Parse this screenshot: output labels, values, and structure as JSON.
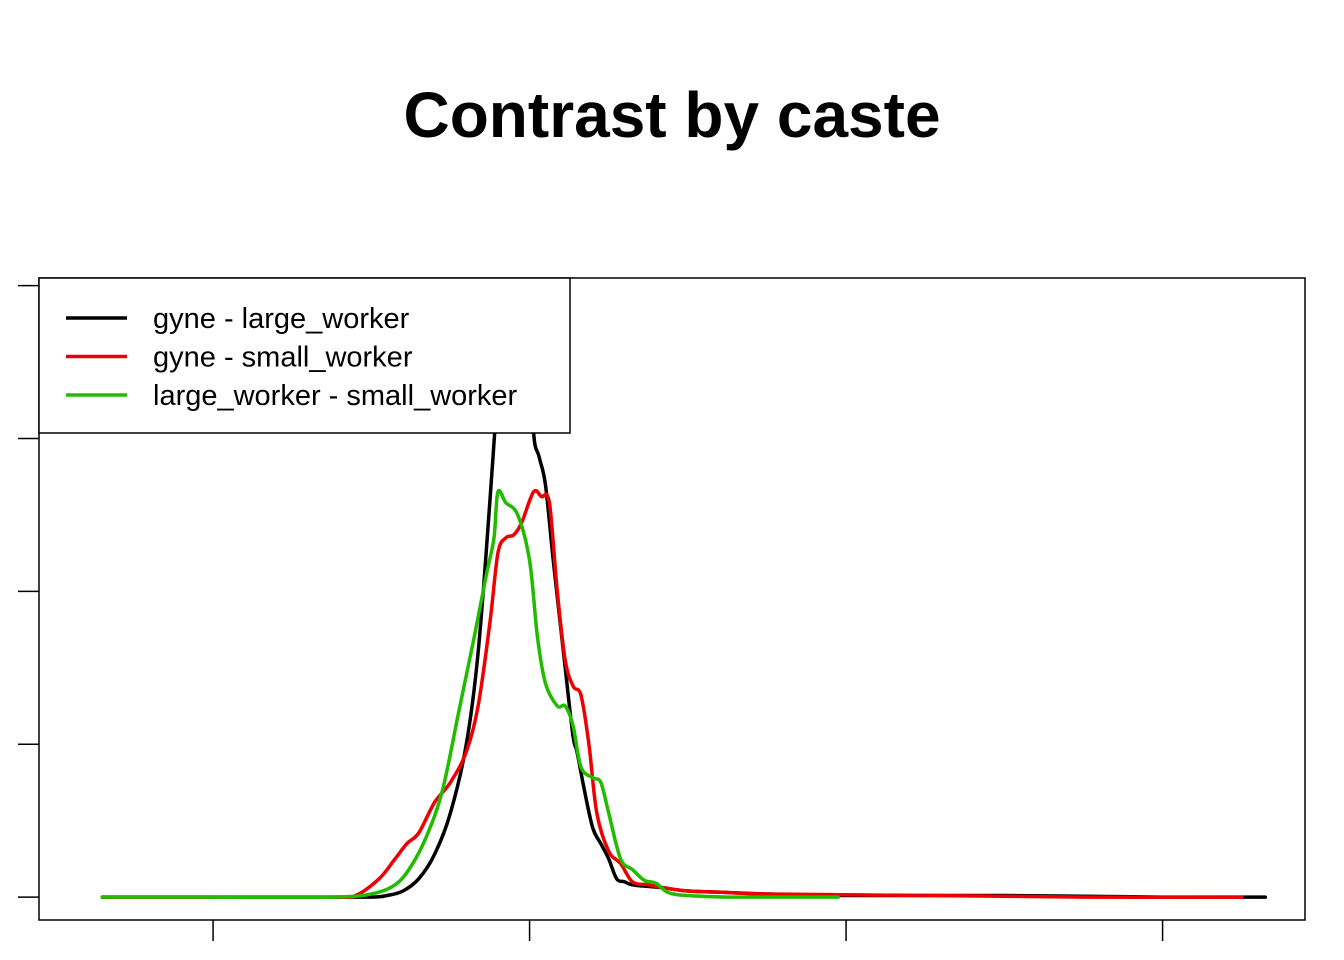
{
  "chart_data": {
    "type": "line",
    "title": "Contrast by caste",
    "xlabel": "",
    "ylabel": "",
    "xlim": [
      -0.62,
      0.98
    ],
    "ylim": [
      -0.015,
      0.405
    ],
    "x_ticks": [
      -0.4,
      0.0,
      0.4,
      0.8
    ],
    "y_ticks": [
      0.0,
      0.1,
      0.2,
      0.3,
      0.4
    ],
    "x_tick_labels_shown": false,
    "y_tick_labels_shown": false,
    "legend_position": "top-left",
    "grid": false,
    "series": [
      {
        "name": "gyne - large_worker",
        "color": "#000000",
        "points": [
          [
            -0.54,
            0.0
          ],
          [
            -0.4,
            0.0
          ],
          [
            -0.25,
            0.0
          ],
          [
            -0.2,
            0.0
          ],
          [
            -0.18,
            0.001
          ],
          [
            -0.16,
            0.004
          ],
          [
            -0.14,
            0.012
          ],
          [
            -0.12,
            0.028
          ],
          [
            -0.1,
            0.055
          ],
          [
            -0.08,
            0.1
          ],
          [
            -0.065,
            0.16
          ],
          [
            -0.05,
            0.26
          ],
          [
            -0.038,
            0.35
          ],
          [
            -0.033,
            0.37
          ],
          [
            -0.01,
            0.39
          ],
          [
            0.0,
            0.38
          ],
          [
            0.005,
            0.305
          ],
          [
            0.012,
            0.288
          ],
          [
            0.02,
            0.27
          ],
          [
            0.03,
            0.22
          ],
          [
            0.045,
            0.15
          ],
          [
            0.055,
            0.105
          ],
          [
            0.06,
            0.095
          ],
          [
            0.07,
            0.068
          ],
          [
            0.08,
            0.045
          ],
          [
            0.09,
            0.035
          ],
          [
            0.1,
            0.025
          ],
          [
            0.11,
            0.012
          ],
          [
            0.12,
            0.01
          ],
          [
            0.13,
            0.008
          ],
          [
            0.15,
            0.007
          ],
          [
            0.17,
            0.006
          ],
          [
            0.2,
            0.004
          ],
          [
            0.25,
            0.003
          ],
          [
            0.3,
            0.002
          ],
          [
            0.4,
            0.001
          ],
          [
            0.6,
            0.001
          ],
          [
            0.8,
            0.0
          ],
          [
            0.93,
            0.0
          ]
        ]
      },
      {
        "name": "gyne - small_worker",
        "color": "#ee0000",
        "points": [
          [
            -0.54,
            0.0
          ],
          [
            -0.4,
            0.0
          ],
          [
            -0.25,
            0.0
          ],
          [
            -0.22,
            0.001
          ],
          [
            -0.19,
            0.012
          ],
          [
            -0.17,
            0.025
          ],
          [
            -0.155,
            0.035
          ],
          [
            -0.14,
            0.042
          ],
          [
            -0.12,
            0.062
          ],
          [
            -0.1,
            0.075
          ],
          [
            -0.08,
            0.095
          ],
          [
            -0.065,
            0.125
          ],
          [
            -0.05,
            0.18
          ],
          [
            -0.04,
            0.225
          ],
          [
            -0.03,
            0.235
          ],
          [
            -0.02,
            0.237
          ],
          [
            -0.01,
            0.245
          ],
          [
            0.005,
            0.265
          ],
          [
            0.015,
            0.262
          ],
          [
            0.025,
            0.258
          ],
          [
            0.035,
            0.2
          ],
          [
            0.045,
            0.155
          ],
          [
            0.055,
            0.138
          ],
          [
            0.065,
            0.132
          ],
          [
            0.075,
            0.1
          ],
          [
            0.085,
            0.055
          ],
          [
            0.1,
            0.03
          ],
          [
            0.115,
            0.022
          ],
          [
            0.13,
            0.01
          ],
          [
            0.15,
            0.008
          ],
          [
            0.17,
            0.006
          ],
          [
            0.2,
            0.004
          ],
          [
            0.25,
            0.003
          ],
          [
            0.3,
            0.002
          ],
          [
            0.5,
            0.001
          ],
          [
            0.7,
            0.0
          ],
          [
            0.9,
            0.0
          ]
        ]
      },
      {
        "name": "large_worker - small_worker",
        "color": "#22bb00",
        "points": [
          [
            -0.54,
            0.0
          ],
          [
            -0.4,
            0.0
          ],
          [
            -0.25,
            0.0
          ],
          [
            -0.2,
            0.002
          ],
          [
            -0.17,
            0.008
          ],
          [
            -0.15,
            0.02
          ],
          [
            -0.13,
            0.04
          ],
          [
            -0.11,
            0.07
          ],
          [
            -0.09,
            0.12
          ],
          [
            -0.07,
            0.17
          ],
          [
            -0.055,
            0.21
          ],
          [
            -0.045,
            0.235
          ],
          [
            -0.04,
            0.265
          ],
          [
            -0.03,
            0.258
          ],
          [
            -0.015,
            0.25
          ],
          [
            0.0,
            0.22
          ],
          [
            0.01,
            0.17
          ],
          [
            0.02,
            0.14
          ],
          [
            0.035,
            0.125
          ],
          [
            0.045,
            0.125
          ],
          [
            0.055,
            0.112
          ],
          [
            0.065,
            0.085
          ],
          [
            0.08,
            0.078
          ],
          [
            0.09,
            0.075
          ],
          [
            0.1,
            0.055
          ],
          [
            0.115,
            0.025
          ],
          [
            0.13,
            0.018
          ],
          [
            0.145,
            0.011
          ],
          [
            0.16,
            0.009
          ],
          [
            0.175,
            0.003
          ],
          [
            0.2,
            0.001
          ],
          [
            0.25,
            0.0
          ],
          [
            0.3,
            0.0
          ],
          [
            0.39,
            0.0
          ]
        ]
      }
    ]
  }
}
